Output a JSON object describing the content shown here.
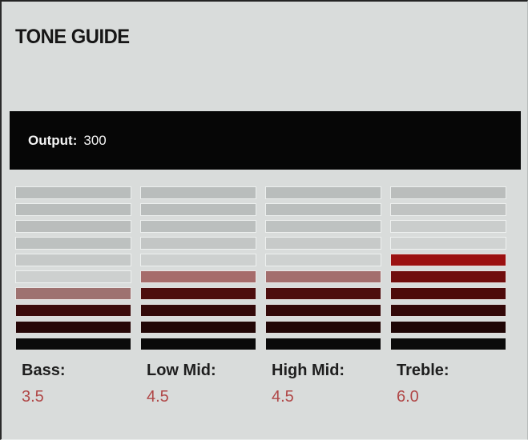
{
  "title": "TONE GUIDE",
  "output": {
    "label": "Output:",
    "value": "300"
  },
  "meters": [
    {
      "label": "Bass:",
      "value": "3.5",
      "segments_top_to_bottom": [
        "#b9bdbc",
        "#b9bdbc",
        "#babdbc",
        "#bdc1c0",
        "#c6c9c8",
        "#cdd0cf",
        "#9e7270",
        "#3a0b0b",
        "#260707",
        "#0b0b0b"
      ]
    },
    {
      "label": "Low Mid:",
      "value": "4.5",
      "segments_top_to_bottom": [
        "#b9bdbc",
        "#b9bdbc",
        "#bbbfbe",
        "#c3c6c5",
        "#cdd0cf",
        "#a66c6b",
        "#4d0d0d",
        "#330909",
        "#210606",
        "#0a0a0a"
      ]
    },
    {
      "label": "High Mid:",
      "value": "4.5",
      "segments_top_to_bottom": [
        "#b9bdbc",
        "#babebd",
        "#bec2c1",
        "#c7cac9",
        "#ced1d0",
        "#a36e6d",
        "#4d0d0d",
        "#330909",
        "#210606",
        "#0a0a0a"
      ]
    },
    {
      "label": "Treble:",
      "value": "6.0",
      "segments_top_to_bottom": [
        "#babdbc",
        "#c0c3c2",
        "#cacdcc",
        "#d0d3d2",
        "#9b1111",
        "#700d0d",
        "#4d0a0a",
        "#330808",
        "#1e0505",
        "#0b0b0b"
      ]
    }
  ],
  "colors": {
    "panel_background": "#d9dcdb",
    "output_bar_background": "#060606",
    "output_text": "#f4f4f4",
    "title_text": "#161616",
    "label_text": "#1e1e1e",
    "value_red": "#b04747",
    "segment_gray": "#b9bdbc",
    "segment_bright_red": "#9b1111",
    "segment_half_rose": "#a66c6b"
  },
  "chart_data": {
    "type": "bar",
    "title": "TONE GUIDE",
    "categories": [
      "Bass",
      "Low Mid",
      "High Mid",
      "Treble"
    ],
    "values": [
      3.5,
      4.5,
      4.5,
      6.0
    ],
    "ylim": [
      0,
      10
    ],
    "segments_per_meter": 10,
    "output_level": 300,
    "style_notes": "segmented vertical LED-style meters; filled segments shade from bright red at top of fill to black at bottom; half steps rendered as desaturated rose segment; unfilled segments gray, lightening toward the fill"
  }
}
